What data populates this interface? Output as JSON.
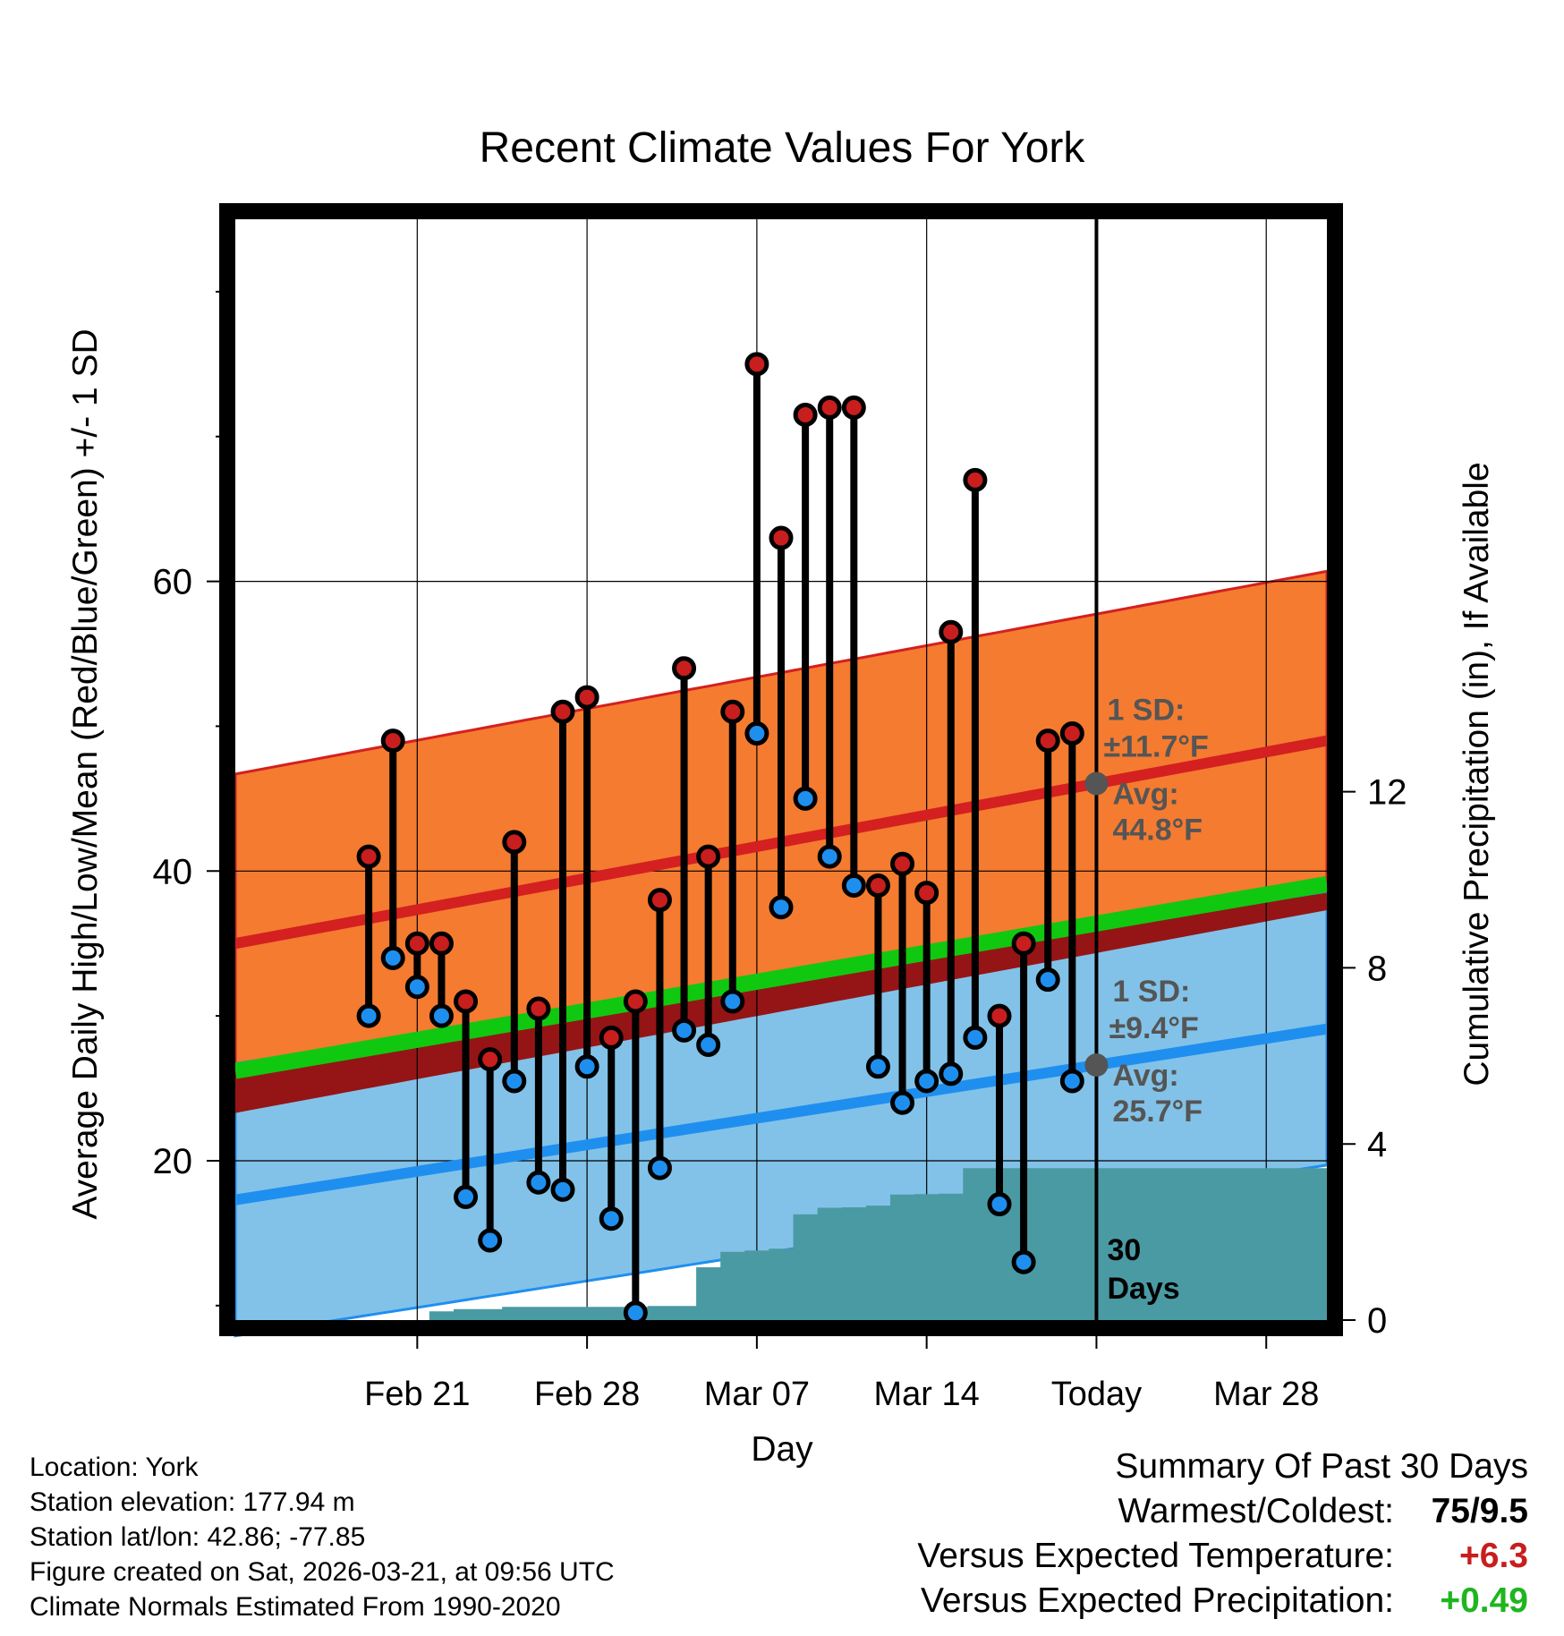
{
  "chart_data": {
    "type": "line",
    "title": "Recent Climate Values For York",
    "xlabel": "Day",
    "ylabel": "Average Daily High/Low/Mean (Red/Blue/Green) +/- 1 SD",
    "y2label": "Cumulative Precipitation (in), If Available",
    "ylim": [
      9,
      85
    ],
    "y2lim": [
      0,
      25
    ],
    "xlim": [
      -7.5,
      37.5
    ],
    "x_ticks": [
      {
        "x": 0,
        "label": "Feb 21"
      },
      {
        "x": 7,
        "label": "Feb 28"
      },
      {
        "x": 14,
        "label": "Mar 07"
      },
      {
        "x": 21,
        "label": "Mar 14"
      },
      {
        "x": 28,
        "label": "Today"
      },
      {
        "x": 35,
        "label": "Mar 28"
      }
    ],
    "y_ticks": [
      20,
      40,
      60
    ],
    "y2_ticks": [
      0,
      4,
      8,
      12
    ],
    "normals": {
      "high_avg": {
        "start": 35.0,
        "end": 49.0
      },
      "high_sd": 11.7,
      "low_avg": {
        "start": 17.3,
        "end": 29.1
      },
      "low_sd": 9.4,
      "mean_avg": {
        "start": 26.2,
        "end": 39.1
      }
    },
    "series": [
      {
        "name": "Daily High",
        "color": "#c81e1e",
        "values": [
          41,
          49,
          35,
          35,
          31,
          27,
          42,
          30.5,
          51,
          52,
          28.5,
          31,
          38,
          54,
          41,
          51,
          75,
          63,
          71.5,
          72,
          72,
          39,
          40.5,
          38.5,
          56.5,
          67,
          30,
          35,
          49,
          49.5
        ]
      },
      {
        "name": "Daily Low",
        "color": "#1f8fef",
        "values": [
          30,
          34,
          32,
          30,
          17.5,
          14.5,
          25.5,
          18.5,
          18,
          26.5,
          16,
          9.5,
          19.5,
          29,
          28,
          31,
          49.5,
          37.5,
          45,
          41,
          39,
          26.5,
          24,
          25.5,
          26,
          28.5,
          17,
          13,
          32.5,
          25.5
        ]
      }
    ],
    "precip": {
      "color": "#4a9aa4",
      "x": [
        -0.5,
        0.5,
        1.5,
        2.5,
        3.5,
        4.5,
        5.5,
        6.5,
        7.5,
        8.5,
        9.5,
        10.5,
        11.5,
        12.5,
        13.5,
        14.5,
        15.5,
        16.5,
        17.5,
        18.5,
        19.5,
        20.5,
        21.5,
        22.5,
        23.5,
        24.5,
        25.5,
        26.5,
        27.5,
        28.5,
        29.5,
        30.5,
        31.5,
        32.5,
        33.5,
        34.5,
        35.5,
        36.5,
        37.5
      ],
      "values": [
        0,
        0.2,
        0.25,
        0.25,
        0.3,
        0.3,
        0.3,
        0.3,
        0.3,
        0.3,
        0.32,
        0.32,
        1.2,
        1.55,
        1.58,
        1.62,
        2.4,
        2.55,
        2.56,
        2.6,
        2.85,
        2.86,
        2.87,
        3.45,
        3.45,
        3.45,
        3.45,
        3.45,
        3.45,
        3.45,
        3.45,
        3.45,
        3.45,
        3.45,
        3.45,
        3.45,
        3.45,
        3.45,
        3.45
      ]
    },
    "annotations": {
      "high_sd": "1 SD:",
      "high_sd_value": "±11.7°F",
      "high_avg": "Avg:",
      "high_avg_value": "44.8°F",
      "low_sd": "1 SD:",
      "low_sd_value": "±9.4°F",
      "low_avg": "Avg:",
      "low_avg_value": "25.7°F",
      "days_count": "30",
      "days_label": "Days"
    }
  },
  "info": {
    "location": "Location: York",
    "elevation": "Station elevation: 177.94 m",
    "latlon": "Station lat/lon: 42.86; -77.85",
    "created": "Figure created on Sat, 2026-03-21, at 09:56 UTC",
    "normals": "Climate Normals Estimated From 1990-2020"
  },
  "summary": {
    "title": "Summary Of Past 30 Days",
    "warm_label": "Warmest/Coldest:",
    "warm_value": "75/9.5",
    "temp_label": "Versus Expected Temperature:",
    "temp_value": "+6.3",
    "temp_color": "#c81e1e",
    "precip_label": "Versus Expected Precipitation:",
    "precip_value": "+0.49",
    "precip_color": "#1fb51f"
  }
}
